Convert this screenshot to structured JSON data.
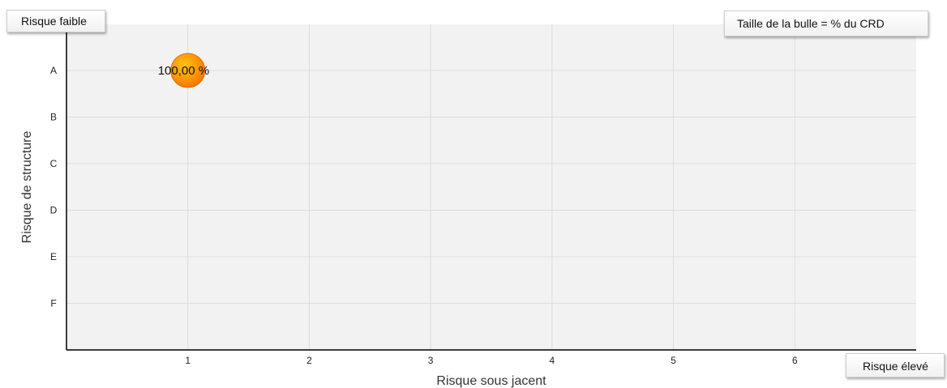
{
  "labels": {
    "low_risk": "Risque faible",
    "high_risk": "Risque élevé",
    "bubble_size_note": "Taille de la bulle = % du CRD"
  },
  "colors": {
    "plot_background": "#f2f2f2",
    "grid": "#dddddd",
    "axis": "#000000",
    "bubble_fill": "#ff9900",
    "bubble_edge": "#e06a00"
  },
  "chart_data": {
    "type": "scatter",
    "title": "",
    "xlabel": "Risque sous jacent",
    "ylabel": "Risque de structure",
    "x_ticks": [
      1,
      2,
      3,
      4,
      5,
      6
    ],
    "y_categories": [
      "A",
      "B",
      "C",
      "D",
      "E",
      "F"
    ],
    "xlim": [
      0,
      7
    ],
    "grid": true,
    "points": [
      {
        "x": 1,
        "y": "A",
        "size_pct": 100,
        "label": "100,00 %"
      }
    ]
  }
}
